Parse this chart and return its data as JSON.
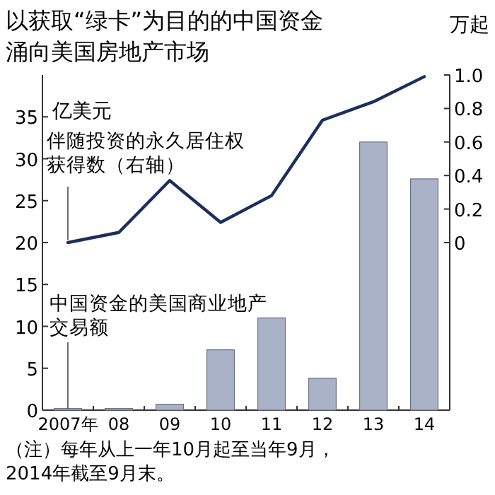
{
  "chart_data": {
    "type": "bar",
    "title": "以获取“绿卡”为目的的中国资金涌向美国房地产市场",
    "ylabel": "亿美元",
    "y2label": "万起",
    "categories": [
      "2007年",
      "08",
      "09",
      "10",
      "11",
      "12",
      "13",
      "14"
    ],
    "series": [
      {
        "name": "中国资金的美国商业地产交易额",
        "color": "#a9b2c6",
        "values": [
          0.2,
          0.2,
          0.7,
          7.2,
          11.0,
          3.8,
          32.0,
          27.6
        ]
      },
      {
        "name": "伴随投资的永久居住权获得数（右轴）",
        "type": "line",
        "axis": "y2",
        "color": "#1c2f5c",
        "values": [
          0.0,
          0.06,
          0.37,
          0.12,
          0.28,
          0.73,
          0.84,
          0.99
        ]
      }
    ],
    "ylim": [
      0,
      40
    ],
    "yticks": [
      0,
      5,
      10,
      15,
      20,
      25,
      30,
      35
    ],
    "y2lim": [
      -1,
      1.0
    ],
    "y2ticks": [
      0,
      0.2,
      0.4,
      0.6,
      0.8,
      {
        "value": 1,
        "label": "1.0"
      }
    ],
    "annotations": [
      "（注）每年从上一年10月起至当年9月，2014年截至9月末。"
    ]
  }
}
